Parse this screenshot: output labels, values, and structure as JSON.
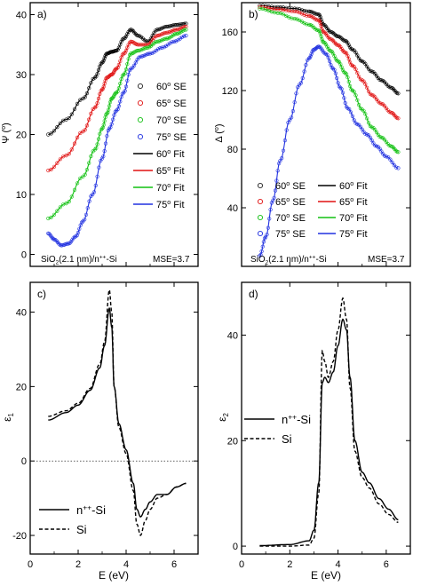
{
  "chart_data": [
    {
      "panel": "a)",
      "type": "scatter",
      "xlim": [
        0,
        7
      ],
      "ylim": [
        -2,
        42
      ],
      "xticks": [
        0,
        2,
        4,
        6
      ],
      "yticks": [
        0,
        10,
        20,
        30,
        40
      ],
      "ylabel": "Ψ (°)",
      "x_tick_labels": false,
      "legend": [
        {
          "label": "60° SE",
          "kind": "symbol",
          "symbol": "circle",
          "color": "#222222"
        },
        {
          "label": "65° SE",
          "kind": "symbol",
          "symbol": "circle",
          "color": "#e01010"
        },
        {
          "label": "70° SE",
          "kind": "symbol",
          "symbol": "circle",
          "color": "#10c010"
        },
        {
          "label": "75° SE",
          "kind": "symbol",
          "symbol": "circle",
          "color": "#2030e0"
        },
        {
          "label": "60° Fit",
          "kind": "line",
          "color": "#000000"
        },
        {
          "label": "65° Fit",
          "kind": "line",
          "color": "#e01010"
        },
        {
          "label": "70° Fit",
          "kind": "line",
          "color": "#10c010"
        },
        {
          "label": "75° Fit",
          "kind": "line",
          "color": "#2030e0"
        }
      ],
      "legend_position": "right",
      "annotations": [
        "SiO2(2.1 nm)/n++-Si",
        "MSE=3.7"
      ],
      "series": [
        {
          "name": "60°",
          "color": "#000000",
          "x": [
            0.75,
            1.5,
            2.2,
            2.7,
            3.0,
            3.2,
            3.4,
            3.6,
            3.9,
            4.2,
            4.5,
            4.9,
            5.3,
            5.7,
            6.1,
            6.5
          ],
          "y": [
            20,
            22.5,
            26,
            29.5,
            32,
            33.5,
            33.8,
            34,
            36,
            37.5,
            36.5,
            35.5,
            37.5,
            38,
            38.3,
            38.5
          ]
        },
        {
          "name": "65°",
          "color": "#e01010",
          "x": [
            0.75,
            1.5,
            2.2,
            2.7,
            3.0,
            3.2,
            3.4,
            3.6,
            3.9,
            4.2,
            4.5,
            4.9,
            5.3,
            5.7,
            6.1,
            6.5
          ],
          "y": [
            14,
            16.5,
            20.5,
            24.5,
            27.5,
            29.5,
            30,
            31,
            33.5,
            35.5,
            35,
            35,
            36.5,
            37,
            37.5,
            38
          ]
        },
        {
          "name": "70°",
          "color": "#10c010",
          "x": [
            0.75,
            1.5,
            2.2,
            2.7,
            3.0,
            3.2,
            3.4,
            3.6,
            3.9,
            4.2,
            4.5,
            4.9,
            5.3,
            5.7,
            6.1,
            6.5
          ],
          "y": [
            6,
            8.5,
            13,
            17.5,
            21,
            23.5,
            26,
            27,
            30,
            33.5,
            34,
            34.5,
            35.5,
            36,
            36.8,
            37.5
          ]
        },
        {
          "name": "75°",
          "color": "#2030e0",
          "x": [
            0.75,
            1.0,
            1.3,
            1.6,
            1.9,
            2.2,
            2.6,
            3.0,
            3.3,
            3.6,
            3.9,
            4.2,
            4.6,
            5.0,
            5.5,
            6.0,
            6.5
          ],
          "y": [
            3.5,
            2.5,
            1.5,
            1.8,
            3,
            5.5,
            10,
            16,
            21,
            24,
            27,
            31,
            33,
            33.5,
            34.5,
            35.5,
            36.5
          ]
        }
      ]
    },
    {
      "panel": "b)",
      "type": "scatter",
      "xlim": [
        0,
        7
      ],
      "ylim": [
        0,
        180
      ],
      "xticks": [
        0,
        2,
        4,
        6
      ],
      "yticks": [
        40,
        80,
        120,
        160
      ],
      "ylabel": "Δ (°)",
      "x_tick_labels": false,
      "legend": [
        {
          "label": "60° SE",
          "kind": "symbol",
          "symbol": "circle",
          "color": "#222222"
        },
        {
          "label": "60° Fit",
          "kind": "line",
          "color": "#000000"
        },
        {
          "label": "65° SE",
          "kind": "symbol",
          "symbol": "circle",
          "color": "#e01010"
        },
        {
          "label": "65° Fit",
          "kind": "line",
          "color": "#e01010"
        },
        {
          "label": "70° SE",
          "kind": "symbol",
          "symbol": "circle",
          "color": "#10c010"
        },
        {
          "label": "70° Fit",
          "kind": "line",
          "color": "#10c010"
        },
        {
          "label": "75° SE",
          "kind": "symbol",
          "symbol": "circle",
          "color": "#2030e0"
        },
        {
          "label": "75° Fit",
          "kind": "line",
          "color": "#2030e0"
        }
      ],
      "legend_position": "bottom",
      "annotations": [
        "SiO2(2.1 nm)/n++-Si",
        "MSE=3.7"
      ],
      "series": [
        {
          "name": "60°",
          "color": "#000000",
          "x": [
            0.75,
            1.5,
            2.2,
            2.8,
            3.2,
            3.4,
            3.7,
            4.0,
            4.3,
            4.6,
            5.0,
            5.4,
            5.8,
            6.2,
            6.5
          ],
          "y": [
            178,
            177,
            176,
            174,
            172,
            165,
            160,
            157,
            154,
            148,
            140,
            133,
            127,
            122,
            118
          ]
        },
        {
          "name": "65°",
          "color": "#e01010",
          "x": [
            0.75,
            1.5,
            2.2,
            2.8,
            3.2,
            3.4,
            3.7,
            4.0,
            4.3,
            4.6,
            5.0,
            5.4,
            5.8,
            6.2,
            6.5
          ],
          "y": [
            177,
            175.5,
            174,
            171,
            168,
            160,
            155,
            151,
            146,
            137,
            127,
            117,
            111,
            105,
            101
          ]
        },
        {
          "name": "70°",
          "color": "#10c010",
          "x": [
            0.75,
            1.5,
            2.2,
            2.8,
            3.2,
            3.4,
            3.7,
            4.0,
            4.3,
            4.6,
            5.0,
            5.4,
            5.8,
            6.2,
            6.5
          ],
          "y": [
            176,
            173,
            169,
            165,
            161,
            153,
            147,
            140,
            132,
            120,
            107,
            95,
            88,
            82,
            78
          ]
        },
        {
          "name": "75°",
          "color": "#2030e0",
          "x": [
            0.75,
            1.0,
            1.3,
            1.6,
            2.0,
            2.4,
            2.8,
            3.0,
            3.2,
            3.5,
            3.8,
            4.1,
            4.4,
            4.8,
            5.2,
            5.6,
            6.0,
            6.5
          ],
          "y": [
            7,
            20,
            45,
            72,
            100,
            124,
            142,
            148,
            150,
            145,
            135,
            122,
            108,
            97,
            90,
            82,
            75,
            67
          ]
        }
      ]
    },
    {
      "panel": "c)",
      "type": "line",
      "xlim": [
        0,
        7
      ],
      "ylim": [
        -25,
        48
      ],
      "xticks": [
        0,
        2,
        4,
        6
      ],
      "yticks": [
        -20,
        0,
        20,
        40
      ],
      "xlabel": "E (eV)",
      "ylabel": "ε1",
      "zero_line": true,
      "legend_position": "bottom-left",
      "series": [
        {
          "name": "n++-Si",
          "style": "solid",
          "x": [
            0.75,
            1.5,
            2.0,
            2.5,
            2.9,
            3.1,
            3.3,
            3.4,
            3.5,
            3.7,
            4.0,
            4.3,
            4.45,
            4.6,
            4.8,
            5.0,
            5.3,
            5.7,
            6.1,
            6.5
          ],
          "y": [
            11,
            13,
            15,
            19,
            25,
            31,
            41,
            36,
            20,
            10,
            3,
            -6,
            -13,
            -15,
            -13,
            -11,
            -9,
            -9,
            -7,
            -6
          ]
        },
        {
          "name": "Si",
          "style": "dashed",
          "x": [
            0.75,
            1.5,
            2.0,
            2.5,
            2.9,
            3.1,
            3.3,
            3.4,
            3.5,
            3.7,
            4.0,
            4.3,
            4.45,
            4.6,
            4.8,
            5.0,
            5.3,
            5.7,
            6.1,
            6.5
          ],
          "y": [
            12,
            13.5,
            15.5,
            19.5,
            26,
            32,
            46,
            40,
            20,
            9,
            2,
            -8,
            -17,
            -20,
            -16,
            -13,
            -10,
            -9,
            -7,
            -6
          ]
        }
      ]
    },
    {
      "panel": "d)",
      "type": "line",
      "xlim": [
        0,
        7
      ],
      "ylim": [
        -1.5,
        50
      ],
      "xticks": [
        0,
        2,
        4,
        6
      ],
      "yticks": [
        0,
        20,
        40
      ],
      "xlabel": "E (eV)",
      "ylabel": "ε2",
      "legend_position": "left",
      "series": [
        {
          "name": "n++-Si",
          "style": "solid",
          "x": [
            0.75,
            2.0,
            2.8,
            3.0,
            3.2,
            3.35,
            3.45,
            3.6,
            3.8,
            4.0,
            4.2,
            4.35,
            4.5,
            4.7,
            5.0,
            5.3,
            5.7,
            6.1,
            6.5
          ],
          "y": [
            0.1,
            0.3,
            1.0,
            3,
            12,
            31,
            32,
            31,
            33,
            38,
            43,
            41,
            32,
            20,
            14,
            12,
            9,
            7,
            5
          ]
        },
        {
          "name": "Si",
          "style": "dashed",
          "x": [
            0.75,
            2.0,
            2.8,
            3.0,
            3.2,
            3.35,
            3.45,
            3.6,
            3.8,
            4.0,
            4.2,
            4.35,
            4.5,
            4.7,
            5.0,
            5.3,
            5.7,
            6.1,
            6.5
          ],
          "y": [
            0.0,
            0.0,
            0.2,
            1.5,
            10,
            37,
            35,
            32,
            35,
            41,
            47,
            43,
            30,
            18,
            13,
            11,
            8,
            6,
            4.5
          ]
        }
      ]
    }
  ]
}
